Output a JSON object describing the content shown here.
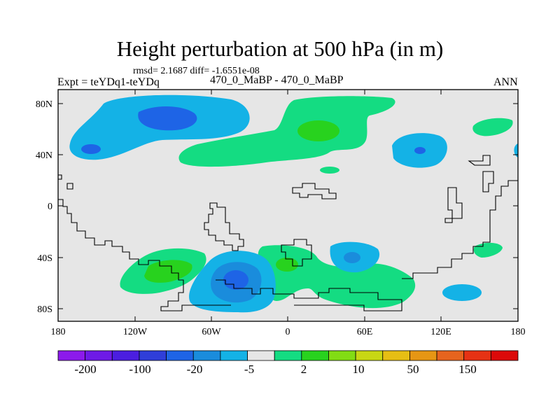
{
  "header": {
    "title": "Height perturbation at 500 hPa (in m)",
    "stats": "rmsd= 2.1687 diff= -1.6551e-08",
    "experiment": "Expt = teYDq1-teYDq",
    "case": "470_0_MaBP - 470_0_MaBP",
    "season": "ANN"
  },
  "map": {
    "lat_ticks": [
      "80N",
      "40N",
      "0",
      "40S",
      "80S"
    ],
    "lon_ticks": [
      "180",
      "120W",
      "60W",
      "0",
      "60E",
      "120E",
      "180"
    ],
    "background_color": "#e6e6e6"
  },
  "colorbar": {
    "colors": [
      "#8c1aeb",
      "#6e1ae6",
      "#4b1ee0",
      "#2f3ed9",
      "#1e64e6",
      "#1a8cdc",
      "#14b2e6",
      "#e6e6e6",
      "#14dc82",
      "#28d21e",
      "#82dc14",
      "#c8d714",
      "#e6be14",
      "#e69614",
      "#e6641e",
      "#e63214",
      "#dc0a0a"
    ],
    "labels": [
      "-200",
      "-100",
      "-20",
      "-5",
      "2",
      "10",
      "50",
      "150"
    ]
  }
}
